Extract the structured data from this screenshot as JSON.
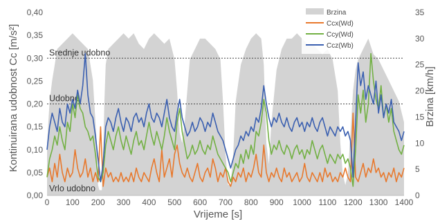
{
  "chart_data": {
    "type": "line",
    "title": "",
    "xlabel": "Vrijeme [s]",
    "ylabel_left": "Kontinuirana udobnost Cc [m/s²]",
    "ylabel_right": "Brzina [km/h]",
    "xlim": [
      0,
      1400
    ],
    "ylim_left": [
      0,
      0.4
    ],
    "ylim_right": [
      0,
      35
    ],
    "x_ticks": [
      0,
      100,
      200,
      300,
      400,
      500,
      600,
      700,
      800,
      900,
      1000,
      1100,
      1200,
      1300,
      1400
    ],
    "x_tick_labels": [
      "0",
      "100",
      "200",
      "300",
      "400",
      "500",
      "600",
      "700",
      "800",
      "900",
      "1000",
      "1100",
      "1200",
      "1300",
      "1400"
    ],
    "y_left_ticks": [
      0,
      0.05,
      0.1,
      0.15,
      0.2,
      0.25,
      0.3,
      0.35,
      0.4
    ],
    "y_left_tick_labels": [
      "0,00",
      "0,05",
      "0,10",
      "0,15",
      "0,20",
      "0,25",
      "0,30",
      "0,35",
      "0,40"
    ],
    "y_right_ticks": [
      0,
      5,
      10,
      15,
      20,
      25,
      30,
      35
    ],
    "y_right_tick_labels": [
      "0",
      "5",
      "10",
      "15",
      "20",
      "25",
      "30",
      "35"
    ],
    "grid": false,
    "legend_position": "top-right",
    "reference_lines": [
      {
        "label": "Srednje udobno",
        "value": 0.3
      },
      {
        "label": "Udobno",
        "value": 0.2
      },
      {
        "label": "Vrlo udobno",
        "value": 0.0
      }
    ],
    "series": [
      {
        "name": "Brzina",
        "kind": "area",
        "axis": "right",
        "color": "#d3d3d3",
        "x": [
          0,
          10,
          20,
          30,
          40,
          60,
          80,
          100,
          120,
          140,
          160,
          180,
          195,
          200,
          205,
          210,
          215,
          220,
          225,
          230,
          240,
          260,
          280,
          300,
          320,
          340,
          360,
          380,
          400,
          420,
          440,
          460,
          480,
          500,
          510,
          520,
          530,
          540,
          550,
          560,
          580,
          600,
          620,
          640,
          660,
          680,
          690,
          700,
          710,
          720,
          730,
          740,
          760,
          780,
          800,
          820,
          840,
          850,
          860,
          870,
          880,
          900,
          920,
          940,
          960,
          980,
          1000,
          1020,
          1040,
          1060,
          1080,
          1100,
          1120,
          1140,
          1150,
          1160,
          1170,
          1180,
          1190,
          1200,
          1210,
          1220,
          1240,
          1260,
          1280,
          1300,
          1320,
          1340,
          1360,
          1380,
          1400
        ],
        "values": [
          10,
          18,
          22,
          25,
          28,
          29,
          30,
          31,
          30,
          29,
          28,
          22,
          10,
          2,
          1,
          1,
          1,
          8,
          18,
          25,
          28,
          29,
          30,
          31,
          30,
          31,
          29,
          28,
          30,
          31,
          30,
          29,
          30,
          26,
          20,
          12,
          10,
          14,
          20,
          26,
          28,
          30,
          30,
          29,
          28,
          26,
          18,
          8,
          2,
          2,
          8,
          18,
          25,
          28,
          30,
          31,
          30,
          25,
          10,
          6,
          14,
          24,
          28,
          30,
          30,
          31,
          30,
          29,
          29,
          28,
          27,
          28,
          26,
          20,
          10,
          4,
          2,
          4,
          12,
          20,
          24,
          26,
          28,
          30,
          27,
          26,
          24,
          22,
          20,
          18,
          14
        ]
      },
      {
        "name": "Ccx(Wd)",
        "kind": "line",
        "axis": "left",
        "color": "#e8782c",
        "x": [
          0,
          10,
          20,
          30,
          40,
          50,
          60,
          70,
          80,
          90,
          100,
          110,
          120,
          130,
          140,
          150,
          160,
          170,
          180,
          190,
          200,
          210,
          220,
          230,
          240,
          250,
          260,
          270,
          280,
          290,
          300,
          310,
          320,
          330,
          340,
          350,
          360,
          370,
          380,
          390,
          400,
          410,
          420,
          430,
          440,
          450,
          460,
          470,
          480,
          490,
          500,
          510,
          520,
          530,
          540,
          550,
          560,
          570,
          580,
          590,
          600,
          610,
          620,
          630,
          640,
          650,
          660,
          670,
          680,
          690,
          700,
          710,
          720,
          730,
          740,
          750,
          760,
          770,
          780,
          790,
          800,
          810,
          820,
          830,
          840,
          850,
          860,
          870,
          880,
          890,
          900,
          910,
          920,
          930,
          940,
          950,
          960,
          970,
          980,
          990,
          1000,
          1010,
          1020,
          1030,
          1040,
          1050,
          1060,
          1070,
          1080,
          1090,
          1100,
          1110,
          1120,
          1130,
          1140,
          1150,
          1160,
          1170,
          1180,
          1190,
          1200,
          1210,
          1220,
          1230,
          1240,
          1250,
          1260,
          1270,
          1280,
          1290,
          1300,
          1310,
          1320,
          1330,
          1340,
          1350,
          1360,
          1370,
          1380,
          1390,
          1400
        ],
        "values": [
          0.04,
          0.06,
          0.03,
          0.07,
          0.04,
          0.09,
          0.05,
          0.03,
          0.06,
          0.04,
          0.05,
          0.1,
          0.06,
          0.04,
          0.05,
          0.08,
          0.04,
          0.06,
          0.03,
          0.05,
          0.03,
          0.15,
          0.02,
          0.06,
          0.04,
          0.05,
          0.03,
          0.04,
          0.03,
          0.05,
          0.03,
          0.04,
          0.03,
          0.05,
          0.03,
          0.06,
          0.04,
          0.03,
          0.05,
          0.04,
          0.03,
          0.06,
          0.08,
          0.05,
          0.03,
          0.1,
          0.04,
          0.06,
          0.08,
          0.04,
          0.09,
          0.11,
          0.07,
          0.05,
          0.04,
          0.06,
          0.04,
          0.03,
          0.05,
          0.07,
          0.04,
          0.03,
          0.05,
          0.06,
          0.04,
          0.08,
          0.06,
          0.03,
          0.05,
          0.04,
          0.06,
          0.03,
          0.02,
          0.04,
          0.03,
          0.05,
          0.04,
          0.06,
          0.03,
          0.05,
          0.04,
          0.06,
          0.09,
          0.05,
          0.04,
          0.11,
          0.05,
          0.03,
          0.05,
          0.04,
          0.06,
          0.04,
          0.03,
          0.06,
          0.04,
          0.05,
          0.03,
          0.04,
          0.05,
          0.03,
          0.04,
          0.07,
          0.04,
          0.03,
          0.05,
          0.04,
          0.03,
          0.05,
          0.03,
          0.06,
          0.04,
          0.05,
          0.03,
          0.04,
          0.03,
          0.05,
          0.04,
          0.06,
          0.04,
          0.03,
          0.18,
          0.04,
          0.03,
          0.05,
          0.07,
          0.04,
          0.06,
          0.05,
          0.08,
          0.05,
          0.06,
          0.04,
          0.05,
          0.03,
          0.05,
          0.04,
          0.06,
          0.03,
          0.05,
          0.04,
          0.06
        ]
      },
      {
        "name": "Ccy(Wd)",
        "kind": "line",
        "axis": "left",
        "color": "#72b043",
        "x": [
          0,
          10,
          20,
          30,
          40,
          50,
          60,
          70,
          80,
          90,
          100,
          110,
          120,
          130,
          140,
          150,
          160,
          170,
          180,
          190,
          200,
          210,
          220,
          230,
          240,
          250,
          260,
          270,
          280,
          290,
          300,
          310,
          320,
          330,
          340,
          350,
          360,
          370,
          380,
          390,
          400,
          410,
          420,
          430,
          440,
          450,
          460,
          470,
          480,
          490,
          500,
          510,
          520,
          530,
          540,
          550,
          560,
          570,
          580,
          590,
          600,
          610,
          620,
          630,
          640,
          650,
          660,
          670,
          680,
          690,
          700,
          710,
          720,
          730,
          740,
          750,
          760,
          770,
          780,
          790,
          800,
          810,
          820,
          830,
          840,
          850,
          860,
          870,
          880,
          890,
          900,
          910,
          920,
          930,
          940,
          950,
          960,
          970,
          980,
          990,
          1000,
          1010,
          1020,
          1030,
          1040,
          1050,
          1060,
          1070,
          1080,
          1090,
          1100,
          1110,
          1120,
          1130,
          1140,
          1150,
          1160,
          1170,
          1180,
          1190,
          1200,
          1210,
          1220,
          1230,
          1240,
          1250,
          1260,
          1270,
          1280,
          1290,
          1300,
          1310,
          1320,
          1330,
          1340,
          1350,
          1360,
          1370,
          1380,
          1390,
          1400
        ],
        "values": [
          0.04,
          0.08,
          0.1,
          0.13,
          0.11,
          0.15,
          0.12,
          0.1,
          0.16,
          0.14,
          0.2,
          0.17,
          0.22,
          0.19,
          0.18,
          0.15,
          0.14,
          0.12,
          0.13,
          0.09,
          0.04,
          0.03,
          0.05,
          0.11,
          0.14,
          0.12,
          0.1,
          0.13,
          0.15,
          0.12,
          0.1,
          0.13,
          0.11,
          0.09,
          0.12,
          0.14,
          0.11,
          0.12,
          0.1,
          0.13,
          0.16,
          0.13,
          0.11,
          0.14,
          0.12,
          0.1,
          0.13,
          0.17,
          0.14,
          0.12,
          0.1,
          0.16,
          0.19,
          0.14,
          0.11,
          0.08,
          0.09,
          0.11,
          0.09,
          0.1,
          0.12,
          0.1,
          0.09,
          0.11,
          0.1,
          0.13,
          0.11,
          0.09,
          0.08,
          0.07,
          0.06,
          0.05,
          0.03,
          0.05,
          0.07,
          0.06,
          0.09,
          0.07,
          0.1,
          0.08,
          0.11,
          0.09,
          0.14,
          0.13,
          0.16,
          0.21,
          0.18,
          0.12,
          0.09,
          0.11,
          0.1,
          0.12,
          0.1,
          0.09,
          0.11,
          0.1,
          0.08,
          0.1,
          0.11,
          0.09,
          0.1,
          0.08,
          0.1,
          0.09,
          0.12,
          0.1,
          0.08,
          0.1,
          0.11,
          0.09,
          0.07,
          0.09,
          0.08,
          0.07,
          0.09,
          0.08,
          0.09,
          0.07,
          0.08,
          0.06,
          0.02,
          0.1,
          0.22,
          0.18,
          0.23,
          0.16,
          0.2,
          0.31,
          0.25,
          0.21,
          0.19,
          0.24,
          0.17,
          0.2,
          0.16,
          0.19,
          0.14,
          0.12,
          0.1,
          0.09,
          0.11
        ]
      },
      {
        "name": "Ccz(Wb)",
        "kind": "line",
        "axis": "left",
        "color": "#3a5fb0",
        "x": [
          0,
          10,
          20,
          30,
          40,
          50,
          60,
          70,
          80,
          90,
          100,
          110,
          120,
          130,
          140,
          150,
          160,
          170,
          180,
          190,
          200,
          210,
          220,
          230,
          240,
          250,
          260,
          270,
          280,
          290,
          300,
          310,
          320,
          330,
          340,
          350,
          360,
          370,
          380,
          390,
          400,
          410,
          420,
          430,
          440,
          450,
          460,
          470,
          480,
          490,
          500,
          510,
          520,
          530,
          540,
          550,
          560,
          570,
          580,
          590,
          600,
          610,
          620,
          630,
          640,
          650,
          660,
          670,
          680,
          690,
          700,
          710,
          720,
          730,
          740,
          750,
          760,
          770,
          780,
          790,
          800,
          810,
          820,
          830,
          840,
          850,
          860,
          870,
          880,
          890,
          900,
          910,
          920,
          930,
          940,
          950,
          960,
          970,
          980,
          990,
          1000,
          1010,
          1020,
          1030,
          1040,
          1050,
          1060,
          1070,
          1080,
          1090,
          1100,
          1110,
          1120,
          1130,
          1140,
          1150,
          1160,
          1170,
          1180,
          1190,
          1200,
          1210,
          1220,
          1230,
          1240,
          1250,
          1260,
          1270,
          1280,
          1290,
          1300,
          1310,
          1320,
          1330,
          1340,
          1350,
          1360,
          1370,
          1380,
          1390,
          1400
        ],
        "values": [
          0.1,
          0.15,
          0.18,
          0.16,
          0.14,
          0.19,
          0.16,
          0.15,
          0.2,
          0.18,
          0.21,
          0.19,
          0.23,
          0.2,
          0.24,
          0.31,
          0.22,
          0.18,
          0.17,
          0.13,
          0.08,
          0.03,
          0.07,
          0.15,
          0.17,
          0.16,
          0.14,
          0.17,
          0.19,
          0.16,
          0.14,
          0.17,
          0.16,
          0.14,
          0.17,
          0.18,
          0.16,
          0.17,
          0.15,
          0.18,
          0.2,
          0.17,
          0.16,
          0.18,
          0.17,
          0.15,
          0.18,
          0.21,
          0.17,
          0.15,
          0.14,
          0.18,
          0.21,
          0.17,
          0.15,
          0.13,
          0.14,
          0.16,
          0.14,
          0.15,
          0.17,
          0.16,
          0.14,
          0.16,
          0.15,
          0.18,
          0.16,
          0.14,
          0.13,
          0.12,
          0.1,
          0.08,
          0.06,
          0.08,
          0.1,
          0.11,
          0.13,
          0.12,
          0.14,
          0.13,
          0.15,
          0.14,
          0.17,
          0.16,
          0.19,
          0.24,
          0.2,
          0.17,
          0.15,
          0.17,
          0.16,
          0.18,
          0.16,
          0.15,
          0.17,
          0.15,
          0.14,
          0.16,
          0.17,
          0.15,
          0.16,
          0.14,
          0.16,
          0.15,
          0.17,
          0.15,
          0.14,
          0.16,
          0.17,
          0.15,
          0.13,
          0.15,
          0.14,
          0.13,
          0.15,
          0.14,
          0.15,
          0.13,
          0.14,
          0.12,
          0.04,
          0.16,
          0.29,
          0.24,
          0.27,
          0.21,
          0.24,
          0.22,
          0.2,
          0.25,
          0.18,
          0.22,
          0.17,
          0.2,
          0.18,
          0.21,
          0.16,
          0.15,
          0.14,
          0.12,
          0.14
        ]
      }
    ]
  }
}
